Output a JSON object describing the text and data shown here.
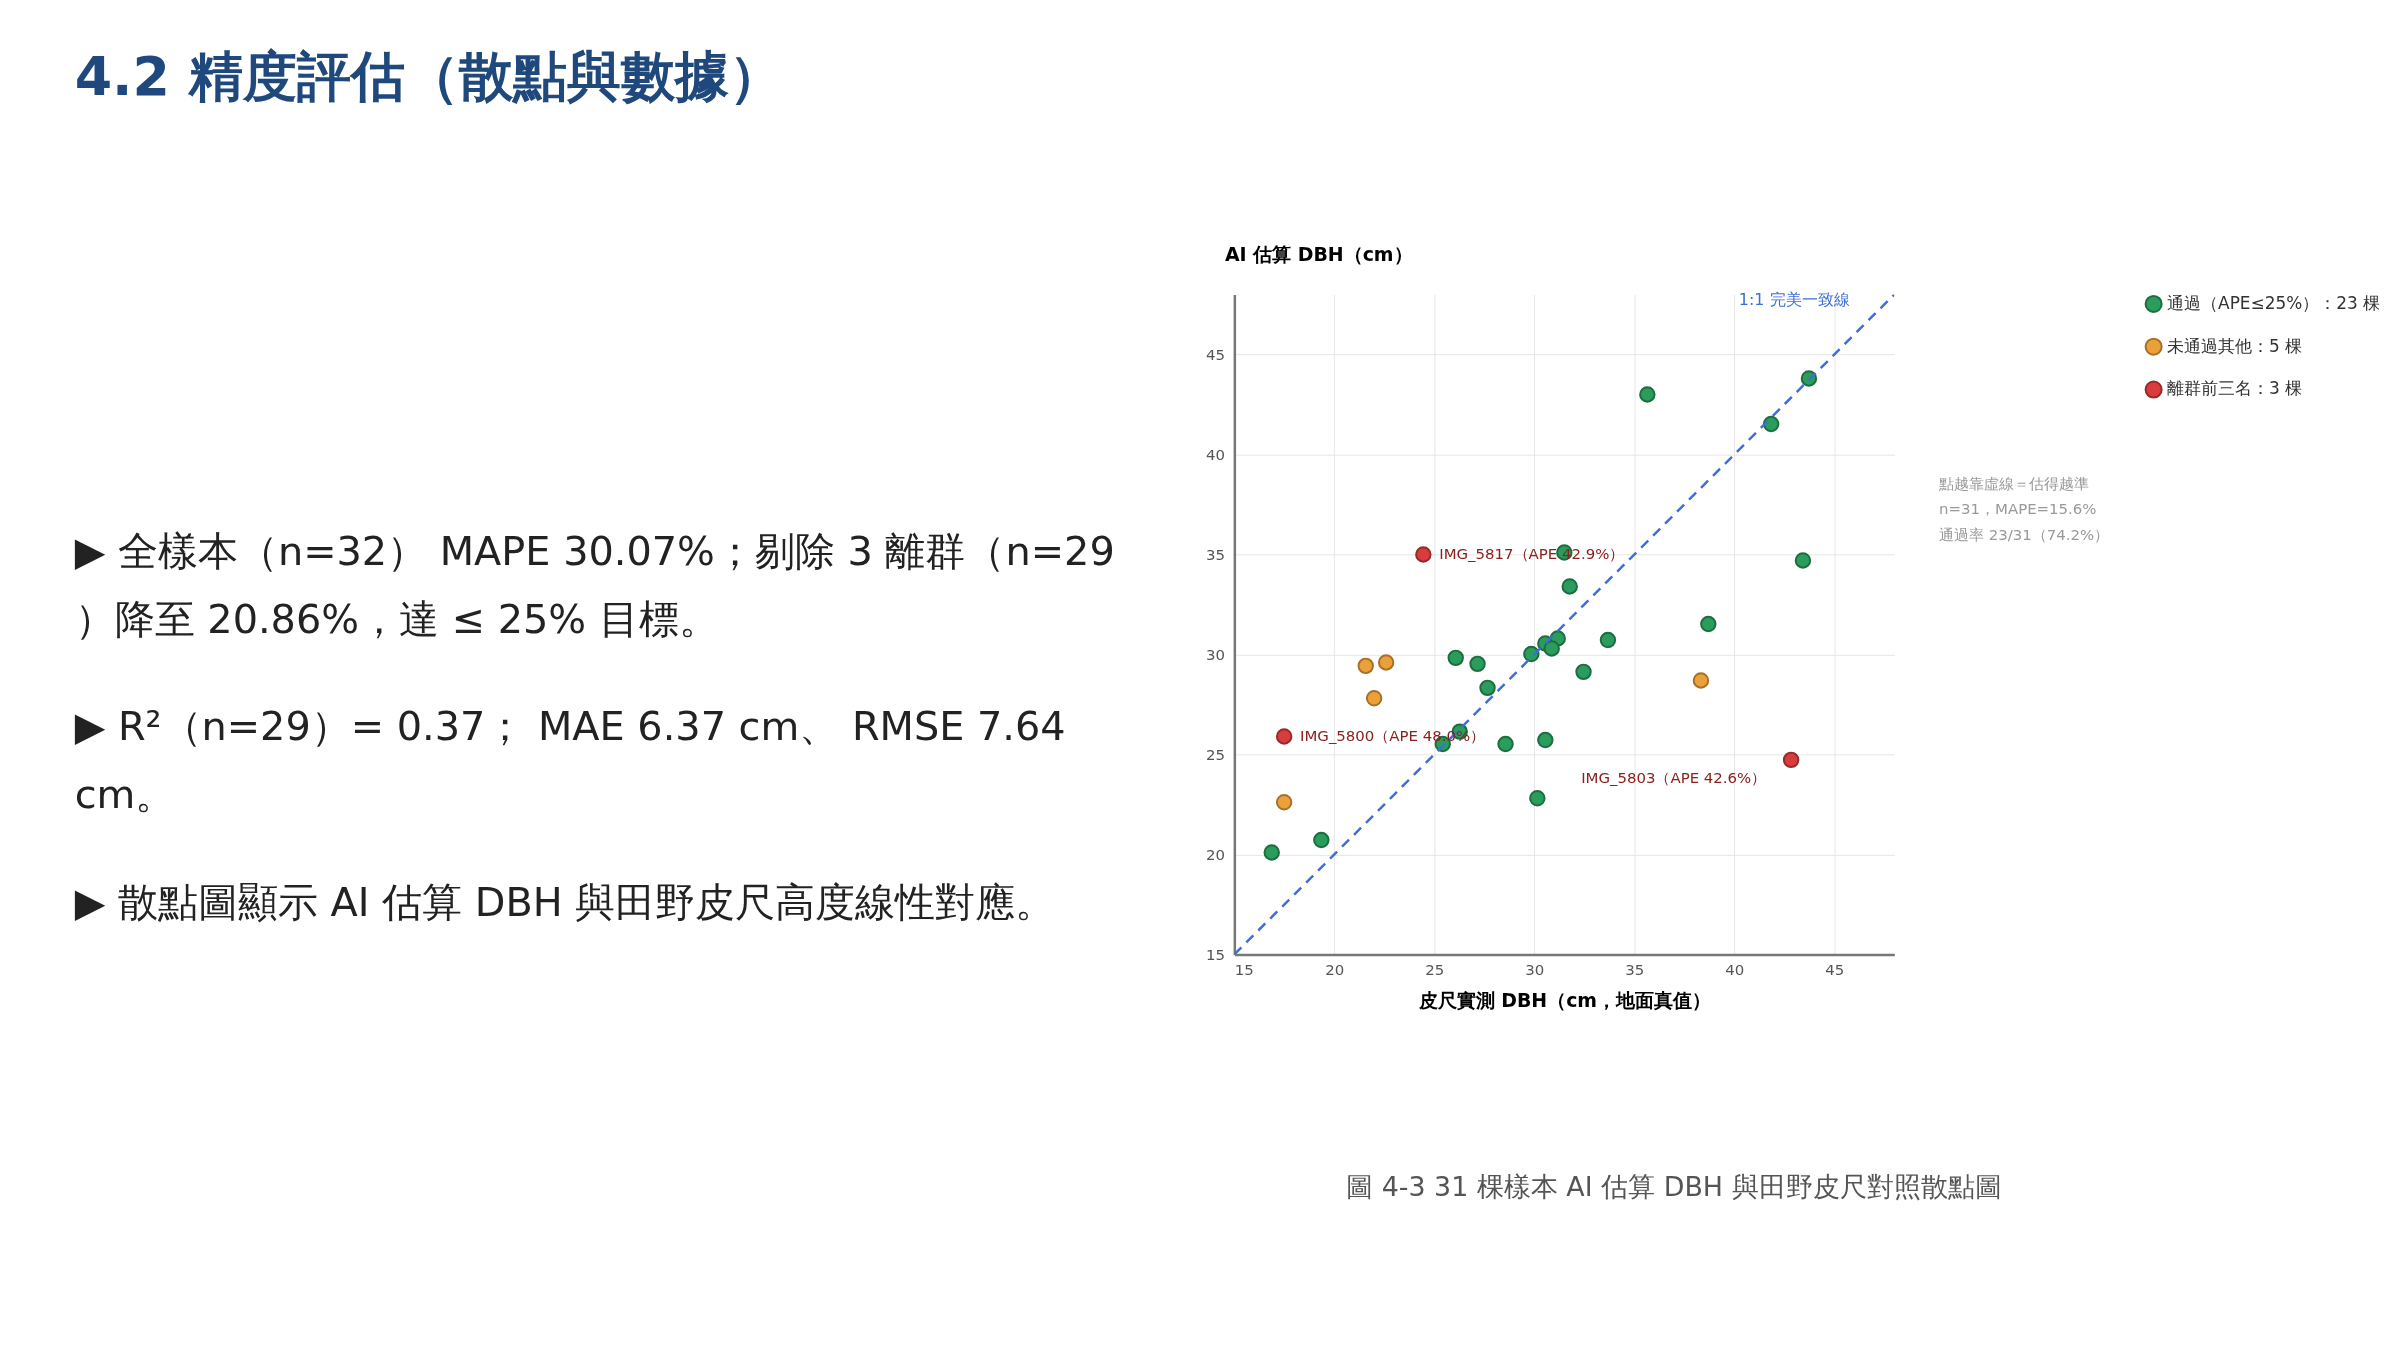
{
  "chart_data": {
    "type": "scatter",
    "title": "4.2  精度評估（散點與數據）",
    "xlabel": "皮尺實測 DBH（cm，地面真值）",
    "ylabel": "AI 估算 DBH（cm）",
    "xlim": [
      15,
      48
    ],
    "ylim": [
      15,
      48
    ],
    "xticks": [
      15,
      20,
      25,
      30,
      35,
      40,
      45
    ],
    "yticks": [
      15,
      20,
      25,
      30,
      35,
      40,
      45
    ],
    "grid": true,
    "legend": "right",
    "series": [
      {
        "name": "通過（APE≤25%）：23 棵",
        "color": "#2a9d5c",
        "marker": "circle",
        "x": [
          35.65,
          31.5,
          31.77,
          26.07,
          27.16,
          27.66,
          29.85,
          30.55,
          31.17,
          30.87,
          33.68,
          32.46,
          38.7,
          26.27,
          25.42,
          28.56,
          30.55,
          30.15,
          19.35,
          16.87,
          43.73,
          41.84,
          43.43
        ],
        "values": [
          43.0,
          35.1,
          33.4,
          29.83,
          29.53,
          28.33,
          30.02,
          30.55,
          30.8,
          30.3,
          30.72,
          29.13,
          31.52,
          26.14,
          25.52,
          25.52,
          25.72,
          22.81,
          20.72,
          20.1,
          43.8,
          41.52,
          34.7
        ]
      },
      {
        "name": "未通過其他：5 棵",
        "color": "#eca03a",
        "marker": "circle",
        "x": [
          21.57,
          22.59,
          21.99,
          17.49,
          38.33
        ],
        "values": [
          29.43,
          29.6,
          27.81,
          22.61,
          28.7
        ]
      },
      {
        "name": "離群前三名：3 棵",
        "color": "#d83c3c",
        "marker": "circle",
        "x": [
          24.45,
          17.49,
          42.84
        ],
        "values": [
          35.0,
          25.9,
          24.73
        ]
      },
      {
        "name": "1:1 完美一致線",
        "color": "#3d6fd6",
        "type": "line",
        "line_style": "dashed",
        "x": [
          15,
          48
        ],
        "values": [
          15,
          48
        ]
      }
    ],
    "annotations": [
      "▶ 全樣本（n=32） MAPE 30.07%；剔除 3 離群（n=29）降至 20.86%，達 ≤ 25% 目標。",
      "▶ R²（n=29）= 0.37； MAE 6.37 cm、 RMSE 7.64 cm。",
      "▶ 散點圖顯示 AI 估算 DBH 與田野皮尺高度線性對應。",
      "點越靠虛線＝估得越準",
      "n=31，MAPE=15.6%",
      "通過率 23/31（74.2%）",
      "圖 4-3   31 棵樣本 AI 估算 DBH 與田野皮尺對照散點圖",
      {
        "text": "IMG_5817（APE 42.9%）",
        "x": 24.45,
        "y": 35.0
      },
      {
        "text": "IMG_5800（APE 48.0%）",
        "x": 17.49,
        "y": 25.9
      },
      {
        "text": "IMG_5803（APE 42.6%）",
        "x": 42.84,
        "y": 24.73
      }
    ]
  }
}
